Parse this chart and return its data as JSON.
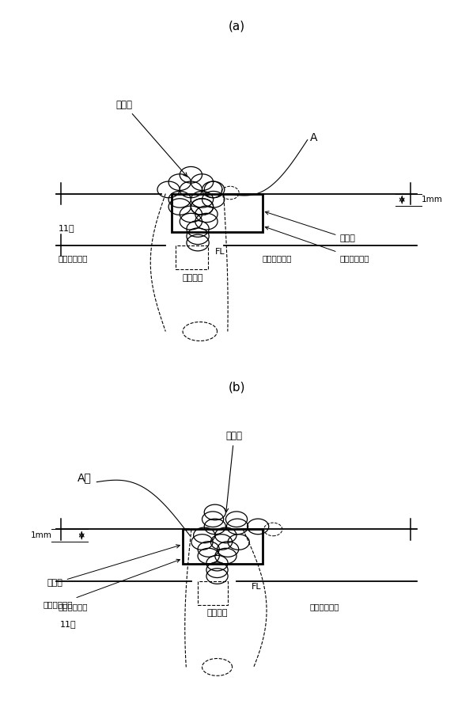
{
  "fig_width": 5.98,
  "fig_height": 9.13,
  "bg_color": "#ffffff",
  "line_color": "#000000",
  "label_a": "(a)",
  "label_b": "(b)",
  "text_yousetsubu": "溶接靄",
  "text_shikenpan": "試験片",
  "text_notchi": "ノッチ最深鑄",
  "text_FL": "FL",
  "text_uraate": "裏当て金",
  "text_kaisen_hai": "開先背側母材",
  "text_kaisen_omote": "開先層側母材",
  "text_A": "A",
  "text_1mm": "1mm",
  "text_11": "11"
}
